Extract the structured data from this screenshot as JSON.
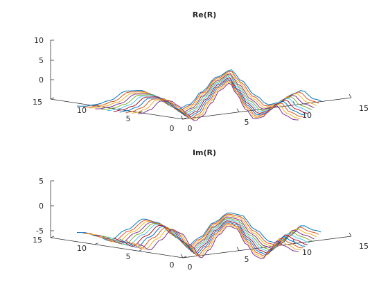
{
  "colors": [
    "#0072BD",
    "#D95319",
    "#EDB120",
    "#7E2F8E",
    "#77AC30",
    "#4DBEEE",
    "#A2142F"
  ],
  "chart_data": [
    {
      "type": "line3d",
      "title": "Re(R)",
      "zlim": [
        -3.5,
        10.5
      ],
      "z_ticks": [
        "10",
        "5",
        "0"
      ],
      "x_ticks": [
        "0",
        "5",
        "10",
        "15"
      ],
      "y_ticks": [
        "0",
        "5",
        "10",
        "15"
      ],
      "series_count": 11,
      "approx_profile": [
        {
          "p": 0.0,
          "z": -1.8
        },
        {
          "p": 0.05,
          "z": -1.2
        },
        {
          "p": 0.1,
          "z": 0.0
        },
        {
          "p": 0.17,
          "z": 3.0
        },
        {
          "p": 0.23,
          "z": 3.2
        },
        {
          "p": 0.28,
          "z": 1.8
        },
        {
          "p": 0.33,
          "z": -0.5
        },
        {
          "p": 0.38,
          "z": -2.6
        },
        {
          "p": 0.43,
          "z": -1.0
        },
        {
          "p": 0.48,
          "z": 3.0
        },
        {
          "p": 0.54,
          "z": 7.5
        },
        {
          "p": 0.6,
          "z": 9.8
        },
        {
          "p": 0.64,
          "z": 6.5
        },
        {
          "p": 0.7,
          "z": 1.8
        },
        {
          "p": 0.75,
          "z": -1.0
        },
        {
          "p": 0.8,
          "z": -0.3
        },
        {
          "p": 0.85,
          "z": 2.3
        },
        {
          "p": 0.89,
          "z": 3.5
        },
        {
          "p": 0.94,
          "z": 0.8
        },
        {
          "p": 1.0,
          "z": -0.5
        }
      ]
    },
    {
      "type": "line3d",
      "title": "Im(R)",
      "zlim": [
        -5.2,
        6.2
      ],
      "z_ticks": [
        "5",
        "0",
        "-5"
      ],
      "x_ticks": [
        "0",
        "5",
        "10",
        "15"
      ],
      "y_ticks": [
        "0",
        "5",
        "10",
        "15"
      ],
      "series_count": 11,
      "approx_profile": [
        {
          "p": 0.0,
          "z": -0.4
        },
        {
          "p": 0.05,
          "z": -1.4
        },
        {
          "p": 0.1,
          "z": -2.6
        },
        {
          "p": 0.17,
          "z": 0.4
        },
        {
          "p": 0.24,
          "z": 3.4
        },
        {
          "p": 0.3,
          "z": 2.4
        },
        {
          "p": 0.36,
          "z": -0.8
        },
        {
          "p": 0.42,
          "z": -3.9
        },
        {
          "p": 0.47,
          "z": -1.6
        },
        {
          "p": 0.53,
          "z": 2.6
        },
        {
          "p": 0.59,
          "z": 5.2
        },
        {
          "p": 0.64,
          "z": 4.6
        },
        {
          "p": 0.7,
          "z": 0.6
        },
        {
          "p": 0.76,
          "z": -2.6
        },
        {
          "p": 0.8,
          "z": -3.3
        },
        {
          "p": 0.85,
          "z": -0.6
        },
        {
          "p": 0.89,
          "z": 1.9
        },
        {
          "p": 0.94,
          "z": 0.6
        },
        {
          "p": 1.0,
          "z": -0.6
        }
      ]
    }
  ]
}
